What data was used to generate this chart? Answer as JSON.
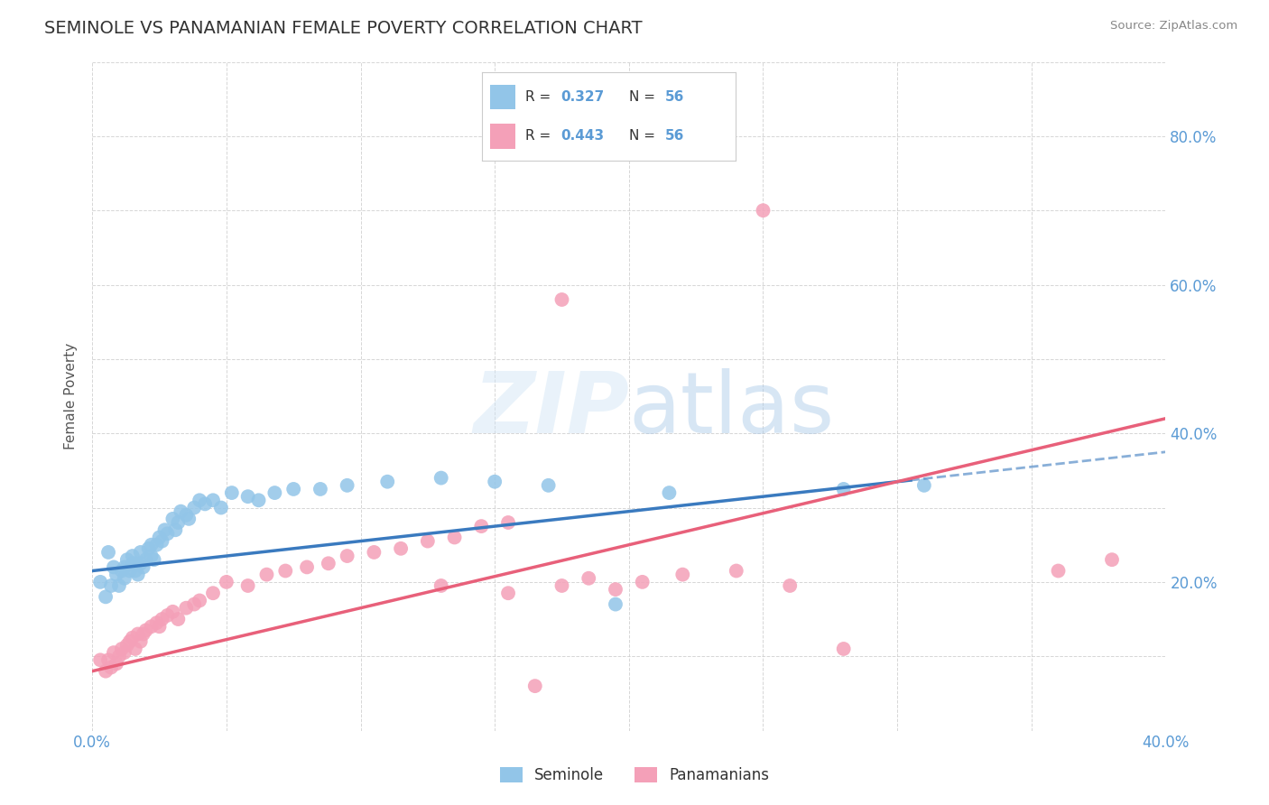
{
  "title": "SEMINOLE VS PANAMANIAN FEMALE POVERTY CORRELATION CHART",
  "source": "Source: ZipAtlas.com",
  "ylabel": "Female Poverty",
  "xlim": [
    0.0,
    0.4
  ],
  "ylim": [
    0.0,
    0.9
  ],
  "title_color": "#333333",
  "title_fontsize": 14,
  "tick_label_color": "#5b9bd5",
  "source_color": "#888888",
  "seminole_color": "#92c5e8",
  "panamanian_color": "#f4a0b8",
  "seminole_line_color": "#3a7abf",
  "panamanian_line_color": "#e8607a",
  "background_color": "#ffffff",
  "seminole_x": [
    0.003,
    0.005,
    0.006,
    0.007,
    0.008,
    0.009,
    0.01,
    0.011,
    0.012,
    0.012,
    0.013,
    0.014,
    0.015,
    0.015,
    0.016,
    0.016,
    0.017,
    0.018,
    0.018,
    0.019,
    0.02,
    0.021,
    0.022,
    0.022,
    0.023,
    0.024,
    0.025,
    0.026,
    0.027,
    0.028,
    0.03,
    0.031,
    0.032,
    0.033,
    0.035,
    0.036,
    0.038,
    0.04,
    0.042,
    0.045,
    0.048,
    0.052,
    0.058,
    0.062,
    0.068,
    0.075,
    0.085,
    0.095,
    0.11,
    0.13,
    0.15,
    0.17,
    0.195,
    0.215,
    0.28,
    0.31
  ],
  "seminole_y": [
    0.2,
    0.18,
    0.24,
    0.195,
    0.22,
    0.21,
    0.195,
    0.215,
    0.22,
    0.205,
    0.23,
    0.215,
    0.225,
    0.235,
    0.215,
    0.225,
    0.21,
    0.225,
    0.24,
    0.22,
    0.23,
    0.245,
    0.235,
    0.25,
    0.23,
    0.25,
    0.26,
    0.255,
    0.27,
    0.265,
    0.285,
    0.27,
    0.28,
    0.295,
    0.29,
    0.285,
    0.3,
    0.31,
    0.305,
    0.31,
    0.3,
    0.32,
    0.315,
    0.31,
    0.32,
    0.325,
    0.325,
    0.33,
    0.335,
    0.34,
    0.335,
    0.33,
    0.17,
    0.32,
    0.325,
    0.33
  ],
  "panamanian_x": [
    0.003,
    0.005,
    0.006,
    0.007,
    0.008,
    0.009,
    0.01,
    0.011,
    0.012,
    0.013,
    0.014,
    0.015,
    0.016,
    0.017,
    0.018,
    0.019,
    0.02,
    0.022,
    0.024,
    0.025,
    0.026,
    0.028,
    0.03,
    0.032,
    0.035,
    0.038,
    0.04,
    0.045,
    0.05,
    0.058,
    0.065,
    0.072,
    0.08,
    0.088,
    0.095,
    0.105,
    0.115,
    0.125,
    0.135,
    0.145,
    0.155,
    0.165,
    0.175,
    0.185,
    0.195,
    0.205,
    0.22,
    0.24,
    0.26,
    0.28,
    0.175,
    0.25,
    0.36,
    0.38,
    0.155,
    0.13
  ],
  "panamanian_y": [
    0.095,
    0.08,
    0.095,
    0.085,
    0.105,
    0.09,
    0.1,
    0.11,
    0.105,
    0.115,
    0.12,
    0.125,
    0.11,
    0.13,
    0.12,
    0.13,
    0.135,
    0.14,
    0.145,
    0.14,
    0.15,
    0.155,
    0.16,
    0.15,
    0.165,
    0.17,
    0.175,
    0.185,
    0.2,
    0.195,
    0.21,
    0.215,
    0.22,
    0.225,
    0.235,
    0.24,
    0.245,
    0.255,
    0.26,
    0.275,
    0.28,
    0.06,
    0.195,
    0.205,
    0.19,
    0.2,
    0.21,
    0.215,
    0.195,
    0.11,
    0.58,
    0.7,
    0.215,
    0.23,
    0.185,
    0.195
  ]
}
